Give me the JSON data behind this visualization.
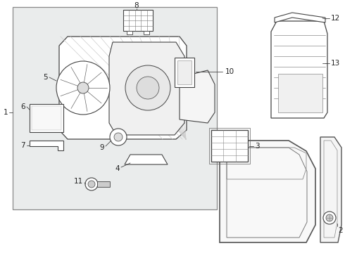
{
  "white": "#ffffff",
  "box_bg": "#eef0f0",
  "line_color": "#444444",
  "label_color": "#222222",
  "fig_width": 4.9,
  "fig_height": 3.6,
  "dpi": 100
}
